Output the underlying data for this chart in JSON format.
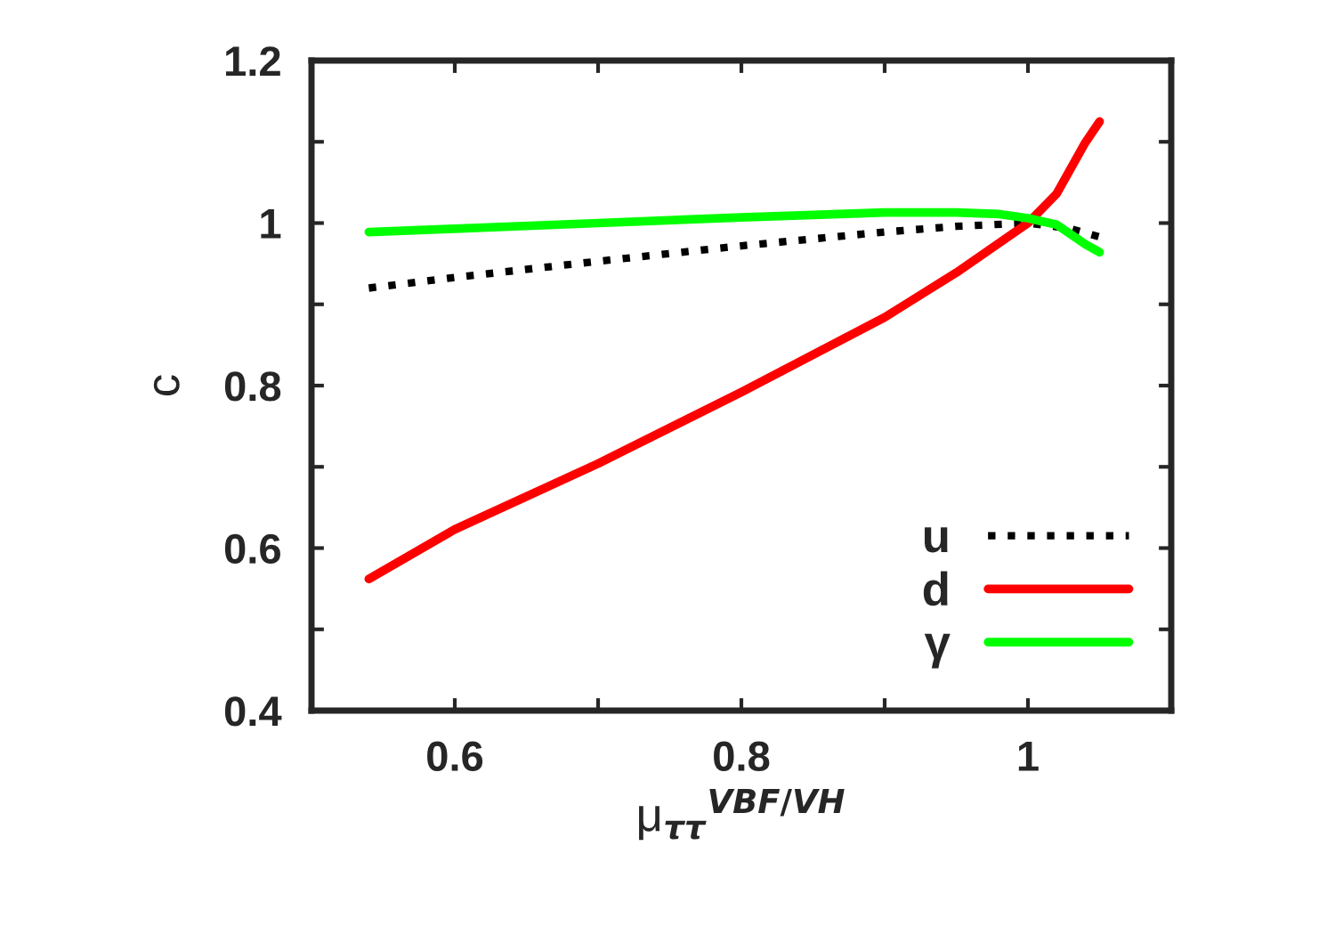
{
  "chart_data": {
    "type": "line",
    "xlabel": "μ$_{ττ}$$^{VBF/VH}$",
    "ylabel": "c",
    "xlim": [
      0.5,
      1.1
    ],
    "ylim": [
      0.4,
      1.2
    ],
    "xticks": [
      0.6,
      {
        "value": 0.7,
        "label": null
      },
      0.8,
      {
        "value": 0.9,
        "label": null
      },
      1
    ],
    "yticks": [
      0.4,
      {
        "value": 0.5,
        "label": null
      },
      0.6,
      {
        "value": 0.7,
        "label": null
      },
      0.8,
      {
        "value": 0.9,
        "label": null
      },
      1,
      {
        "value": 1.1,
        "label": null
      },
      1.2
    ],
    "legend": "bottom right",
    "grid": false,
    "series": [
      {
        "name": "u",
        "color": "#000000",
        "line_style": "dotted",
        "x": [
          0.54,
          0.6,
          0.7,
          0.8,
          0.9,
          0.95,
          1.0,
          1.03,
          1.05
        ],
        "values": [
          0.92,
          0.933,
          0.953,
          0.972,
          0.989,
          0.996,
          1.0,
          0.993,
          0.983
        ]
      },
      {
        "name": "d",
        "color": "#ff0000",
        "line_style": "solid",
        "x": [
          0.54,
          0.6,
          0.7,
          0.8,
          0.9,
          0.95,
          1.0,
          1.02,
          1.04,
          1.05
        ],
        "values": [
          0.562,
          0.623,
          0.704,
          0.792,
          0.884,
          0.939,
          1.0,
          1.036,
          1.099,
          1.125
        ]
      },
      {
        "name": "γ",
        "color": "#00ff00",
        "line_style": "solid",
        "x": [
          0.54,
          0.6,
          0.7,
          0.8,
          0.9,
          0.95,
          0.98,
          1.0,
          1.02,
          1.04,
          1.05
        ],
        "values": [
          0.989,
          0.993,
          1.0,
          1.007,
          1.013,
          1.013,
          1.011,
          1.006,
          0.998,
          0.974,
          0.964
        ]
      }
    ]
  }
}
